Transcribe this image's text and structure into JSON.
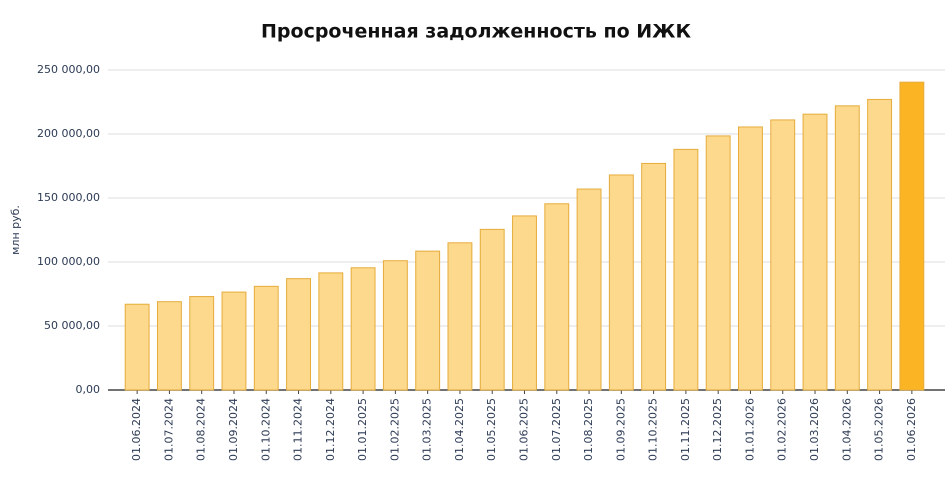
{
  "chart_data": {
    "type": "bar",
    "title": "Просроченная задолженность по ИЖК",
    "y_label": "млн руб.",
    "categories": [
      "01.06.2024",
      "01.07.2024",
      "01.08.2024",
      "01.09.2024",
      "01.10.2024",
      "01.11.2024",
      "01.12.2024",
      "01.01.2025",
      "01.02.2025",
      "01.03.2025",
      "01.04.2025",
      "01.05.2025",
      "01.06.2025",
      "01.07.2025",
      "01.08.2025",
      "01.09.2025",
      "01.10.2025",
      "01.11.2025",
      "01.12.2025",
      "01.01.2026",
      "01.02.2026",
      "01.03.2026",
      "01.04.2026",
      "01.05.2026",
      "01.06.2026"
    ],
    "values": [
      67000,
      69000,
      73000,
      76500,
      81000,
      87000,
      91500,
      95500,
      101000,
      108500,
      115000,
      125500,
      136000,
      145500,
      157000,
      168000,
      177000,
      188000,
      198500,
      205500,
      211000,
      215500,
      222000,
      227000,
      240500
    ],
    "colors": [
      "#fcd98c",
      "#fcd98c",
      "#fcd98c",
      "#fcd98c",
      "#fcd98c",
      "#fcd98c",
      "#fcd98c",
      "#fcd98c",
      "#fcd98c",
      "#fcd98c",
      "#fcd98c",
      "#fcd98c",
      "#fcd98c",
      "#fcd98c",
      "#fcd98c",
      "#fcd98c",
      "#fcd98c",
      "#fcd98c",
      "#fcd98c",
      "#fcd98c",
      "#fcd98c",
      "#fcd98c",
      "#fcd98c",
      "#fcd98c",
      "#fbb424"
    ],
    "ylim": [
      0,
      250000
    ],
    "yticks": [
      {
        "value": 0,
        "label": "0,00"
      },
      {
        "value": 50000,
        "label": "50 000,00"
      },
      {
        "value": 100000,
        "label": "100 000,00"
      },
      {
        "value": 150000,
        "label": "150 000,00"
      },
      {
        "value": 200000,
        "label": "200 000,00"
      },
      {
        "value": 250000,
        "label": "250 000,00"
      }
    ],
    "grid": true
  }
}
